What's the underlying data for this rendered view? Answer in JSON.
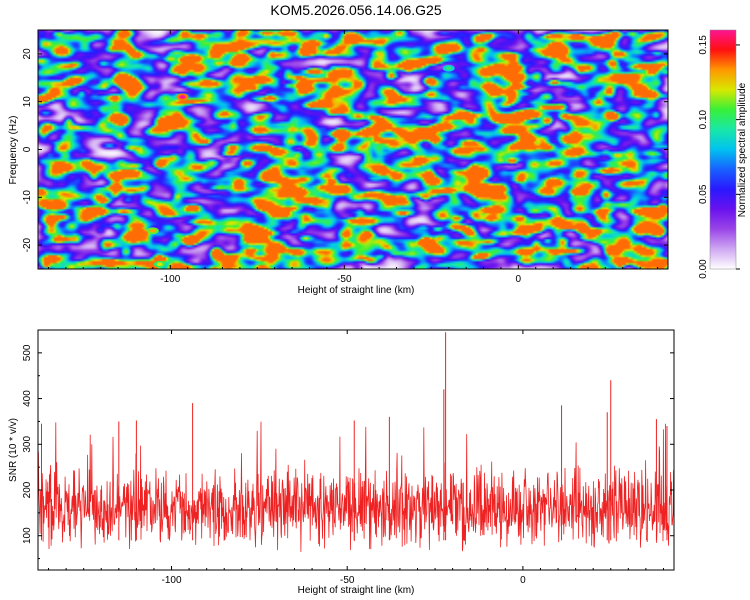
{
  "title": "KOM5.2026.056.14.06.G25",
  "chart_data": [
    {
      "type": "heatmap",
      "name": "spectrogram",
      "title": "KOM5.2026.056.14.06.G25",
      "xlabel": "Height of straight line (km)",
      "ylabel": "Frequency (Hz)",
      "xlim": [
        -138,
        43
      ],
      "ylim": [
        -25,
        25
      ],
      "xticks": [
        -100,
        -50,
        0
      ],
      "yticks": [
        -20,
        -10,
        0,
        10,
        20
      ],
      "colorbar": {
        "label": "Normalized spectral amplitude",
        "range": [
          0,
          0.16
        ],
        "ticks": [
          "0.00",
          "0.05",
          "0.10",
          "0.15"
        ],
        "tick_values": [
          0,
          0.05,
          0.1,
          0.15
        ],
        "colormap": [
          "#ffffff",
          "#cfa8f2",
          "#9a45e8",
          "#6a12ee",
          "#2a18ff",
          "#1860ff",
          "#00c2f0",
          "#18e8a8",
          "#38f038",
          "#d8e800",
          "#ff9800",
          "#ff1010",
          "#ff1493"
        ]
      },
      "peaks": [
        {
          "x": -96.5,
          "y": 11,
          "amplitude": 0.16
        },
        {
          "x": -105,
          "y": -17,
          "amplitude": 0.13
        },
        {
          "x": -103,
          "y": -24,
          "amplitude": 0.12
        },
        {
          "x": -20,
          "y": 17,
          "amplitude": 0.1
        }
      ]
    },
    {
      "type": "line",
      "name": "snr",
      "xlabel": "Height of straight line (km)",
      "ylabel": "SNR (10 * v/v)",
      "xlim": [
        -138,
        43
      ],
      "ylim": [
        25,
        550
      ],
      "xticks": [
        -100,
        -50,
        0
      ],
      "yticks": [
        100,
        200,
        300,
        400,
        500
      ],
      "color": "#ee2222",
      "typical_range": [
        60,
        260
      ],
      "peaks": [
        {
          "x": -22,
          "y": 545
        },
        {
          "x": -22.5,
          "y": 420
        },
        {
          "x": 25,
          "y": 440
        },
        {
          "x": -94,
          "y": 390
        },
        {
          "x": 11,
          "y": 385
        },
        {
          "x": 24,
          "y": 370
        },
        {
          "x": 38,
          "y": 355
        },
        {
          "x": -137,
          "y": 345
        },
        {
          "x": -115,
          "y": 350
        },
        {
          "x": -110,
          "y": 352
        },
        {
          "x": -48,
          "y": 352
        },
        {
          "x": -38,
          "y": 360
        },
        {
          "x": 41,
          "y": 340
        }
      ]
    }
  ]
}
